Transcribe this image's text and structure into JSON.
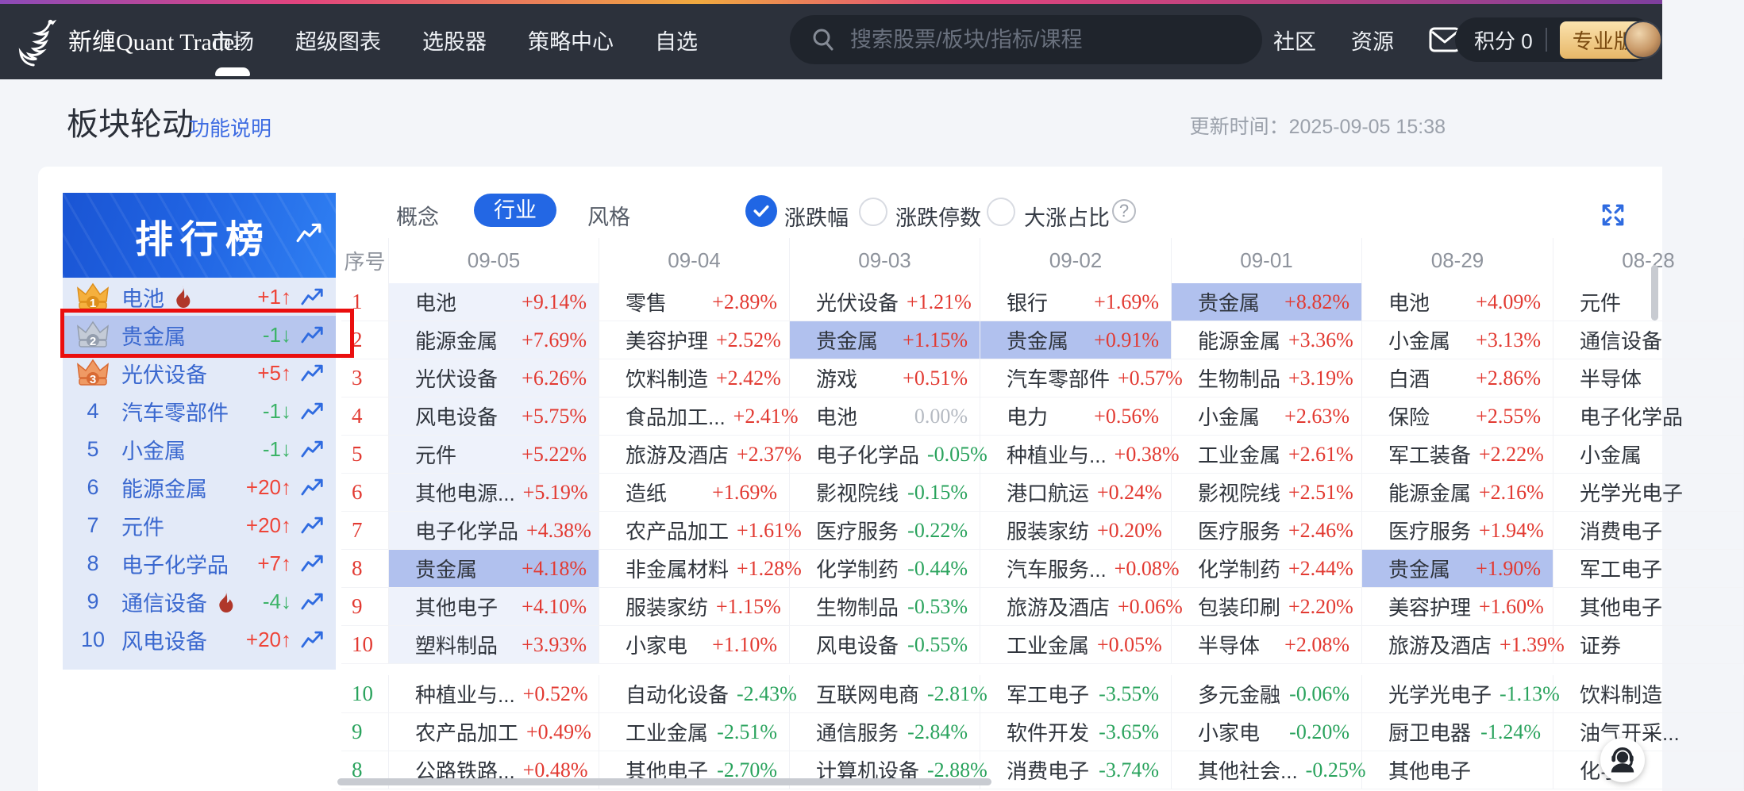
{
  "nav": {
    "brand": "新缠Quant Trader",
    "menu": [
      {
        "label": "市场",
        "active": true
      },
      {
        "label": "超级图表",
        "active": false
      },
      {
        "label": "选股器",
        "active": false
      },
      {
        "label": "策略中心",
        "active": false
      },
      {
        "label": "自选",
        "active": false
      }
    ],
    "search_placeholder": "搜索股票/板块/指标/课程",
    "links": [
      {
        "label": "社区"
      },
      {
        "label": "资源"
      }
    ],
    "score_label": "积分 0",
    "badge": "专业版"
  },
  "header": {
    "title": "板块轮动",
    "doc_link": "功能说明",
    "update_time": "更新时间：2025-09-05 15:38"
  },
  "sidebar": {
    "title": "排行榜",
    "items": [
      {
        "rank": 1,
        "name": "电池",
        "hot": true,
        "delta": "+1",
        "dir": "up",
        "selected": false
      },
      {
        "rank": 2,
        "name": "贵金属",
        "hot": false,
        "delta": "-1",
        "dir": "down",
        "selected": true
      },
      {
        "rank": 3,
        "name": "光伏设备",
        "hot": false,
        "delta": "+5",
        "dir": "up",
        "selected": false
      },
      {
        "rank": 4,
        "name": "汽车零部件",
        "hot": false,
        "delta": "-1",
        "dir": "down",
        "selected": false
      },
      {
        "rank": 5,
        "name": "小金属",
        "hot": false,
        "delta": "-1",
        "dir": "down",
        "selected": false
      },
      {
        "rank": 6,
        "name": "能源金属",
        "hot": false,
        "delta": "+20",
        "dir": "up",
        "selected": false
      },
      {
        "rank": 7,
        "name": "元件",
        "hot": false,
        "delta": "+20",
        "dir": "up",
        "selected": false
      },
      {
        "rank": 8,
        "name": "电子化学品",
        "hot": false,
        "delta": "+7",
        "dir": "up",
        "selected": false
      },
      {
        "rank": 9,
        "name": "通信设备",
        "hot": true,
        "delta": "-4",
        "dir": "down",
        "selected": false
      },
      {
        "rank": 10,
        "name": "风电设备",
        "hot": false,
        "delta": "+20",
        "dir": "up",
        "selected": false
      }
    ],
    "arrow_up": "↑",
    "arrow_down": "↓"
  },
  "toolbar": {
    "tabs": [
      {
        "label": "概念",
        "active": false
      },
      {
        "label": "行业",
        "active": true
      },
      {
        "label": "风格",
        "active": false
      }
    ],
    "radios": [
      {
        "label": "涨跌幅",
        "checked": true
      },
      {
        "label": "涨跌停数",
        "checked": false
      },
      {
        "label": "大涨占比",
        "checked": false
      }
    ],
    "help_glyph": "?"
  },
  "table": {
    "index_header": "序号",
    "dates": [
      "09-05",
      "09-04",
      "09-03",
      "09-02",
      "09-01",
      "08-29",
      "08-28"
    ],
    "gainers": [
      {
        "index": "1",
        "cells": [
          {
            "name": "电池",
            "pct": "+9.14%"
          },
          {
            "name": "零售",
            "pct": "+2.89%"
          },
          {
            "name": "光伏设备",
            "pct": "+1.21%"
          },
          {
            "name": "银行",
            "pct": "+1.69%"
          },
          {
            "name": "贵金属",
            "pct": "+8.82%",
            "hl": true
          },
          {
            "name": "电池",
            "pct": "+4.09%"
          },
          {
            "name": "元件",
            "pct": ""
          }
        ]
      },
      {
        "index": "2",
        "cells": [
          {
            "name": "能源金属",
            "pct": "+7.69%"
          },
          {
            "name": "美容护理",
            "pct": "+2.52%"
          },
          {
            "name": "贵金属",
            "pct": "+1.15%",
            "hl": true
          },
          {
            "name": "贵金属",
            "pct": "+0.91%",
            "hl": true
          },
          {
            "name": "能源金属",
            "pct": "+3.36%"
          },
          {
            "name": "小金属",
            "pct": "+3.13%"
          },
          {
            "name": "通信设备",
            "pct": ""
          }
        ]
      },
      {
        "index": "3",
        "cells": [
          {
            "name": "光伏设备",
            "pct": "+6.26%"
          },
          {
            "name": "饮料制造",
            "pct": "+2.42%"
          },
          {
            "name": "游戏",
            "pct": "+0.51%"
          },
          {
            "name": "汽车零部件",
            "pct": "+0.57%"
          },
          {
            "name": "生物制品",
            "pct": "+3.19%"
          },
          {
            "name": "白酒",
            "pct": "+2.86%"
          },
          {
            "name": "半导体",
            "pct": ""
          }
        ]
      },
      {
        "index": "4",
        "cells": [
          {
            "name": "风电设备",
            "pct": "+5.75%"
          },
          {
            "name": "食品加工...",
            "pct": "+2.41%"
          },
          {
            "name": "电池",
            "pct": "0.00%"
          },
          {
            "name": "电力",
            "pct": "+0.56%"
          },
          {
            "name": "小金属",
            "pct": "+2.63%"
          },
          {
            "name": "保险",
            "pct": "+2.55%"
          },
          {
            "name": "电子化学品",
            "pct": ""
          }
        ]
      },
      {
        "index": "5",
        "cells": [
          {
            "name": "元件",
            "pct": "+5.22%"
          },
          {
            "name": "旅游及酒店",
            "pct": "+2.37%"
          },
          {
            "name": "电子化学品",
            "pct": "-0.05%"
          },
          {
            "name": "种植业与...",
            "pct": "+0.38%"
          },
          {
            "name": "工业金属",
            "pct": "+2.61%"
          },
          {
            "name": "军工装备",
            "pct": "+2.22%"
          },
          {
            "name": "小金属",
            "pct": ""
          }
        ]
      },
      {
        "index": "6",
        "cells": [
          {
            "name": "其他电源...",
            "pct": "+5.19%"
          },
          {
            "name": "造纸",
            "pct": "+1.69%"
          },
          {
            "name": "影视院线",
            "pct": "-0.15%"
          },
          {
            "name": "港口航运",
            "pct": "+0.24%"
          },
          {
            "name": "影视院线",
            "pct": "+2.51%"
          },
          {
            "name": "能源金属",
            "pct": "+2.16%"
          },
          {
            "name": "光学光电子",
            "pct": ""
          }
        ]
      },
      {
        "index": "7",
        "cells": [
          {
            "name": "电子化学品",
            "pct": "+4.38%"
          },
          {
            "name": "农产品加工",
            "pct": "+1.61%"
          },
          {
            "name": "医疗服务",
            "pct": "-0.22%"
          },
          {
            "name": "服装家纺",
            "pct": "+0.20%"
          },
          {
            "name": "医疗服务",
            "pct": "+2.46%"
          },
          {
            "name": "医疗服务",
            "pct": "+1.94%"
          },
          {
            "name": "消费电子",
            "pct": ""
          }
        ]
      },
      {
        "index": "8",
        "cells": [
          {
            "name": "贵金属",
            "pct": "+4.18%",
            "hl": true
          },
          {
            "name": "非金属材料",
            "pct": "+1.28%"
          },
          {
            "name": "化学制药",
            "pct": "-0.44%"
          },
          {
            "name": "汽车服务...",
            "pct": "+0.08%"
          },
          {
            "name": "化学制药",
            "pct": "+2.44%"
          },
          {
            "name": "贵金属",
            "pct": "+1.90%",
            "hl": true
          },
          {
            "name": "军工电子",
            "pct": ""
          }
        ]
      },
      {
        "index": "9",
        "cells": [
          {
            "name": "其他电子",
            "pct": "+4.10%"
          },
          {
            "name": "服装家纺",
            "pct": "+1.15%"
          },
          {
            "name": "生物制品",
            "pct": "-0.53%"
          },
          {
            "name": "旅游及酒店",
            "pct": "+0.06%"
          },
          {
            "name": "包装印刷",
            "pct": "+2.20%"
          },
          {
            "name": "美容护理",
            "pct": "+1.60%"
          },
          {
            "name": "其他电子",
            "pct": ""
          }
        ]
      },
      {
        "index": "10",
        "cells": [
          {
            "name": "塑料制品",
            "pct": "+3.93%"
          },
          {
            "name": "小家电",
            "pct": "+1.10%"
          },
          {
            "name": "风电设备",
            "pct": "-0.55%"
          },
          {
            "name": "工业金属",
            "pct": "+0.05%"
          },
          {
            "name": "半导体",
            "pct": "+2.08%"
          },
          {
            "name": "旅游及酒店",
            "pct": "+1.39%"
          },
          {
            "name": "证券",
            "pct": ""
          }
        ]
      }
    ],
    "losers": [
      {
        "index": "10",
        "cells": [
          {
            "name": "种植业与...",
            "pct": "+0.52%"
          },
          {
            "name": "自动化设备",
            "pct": "-2.43%"
          },
          {
            "name": "互联网电商",
            "pct": "-2.81%"
          },
          {
            "name": "军工电子",
            "pct": "-3.55%"
          },
          {
            "name": "多元金融",
            "pct": "-0.06%"
          },
          {
            "name": "光学光电子",
            "pct": "-1.13%"
          },
          {
            "name": "饮料制造",
            "pct": ""
          }
        ]
      },
      {
        "index": "9",
        "cells": [
          {
            "name": "农产品加工",
            "pct": "+0.49%"
          },
          {
            "name": "工业金属",
            "pct": "-2.51%"
          },
          {
            "name": "通信服务",
            "pct": "-2.84%"
          },
          {
            "name": "软件开发",
            "pct": "-3.65%"
          },
          {
            "name": "小家电",
            "pct": "-0.20%"
          },
          {
            "name": "厨卫电器",
            "pct": "-1.24%"
          },
          {
            "name": "油气开采...",
            "pct": ""
          }
        ]
      },
      {
        "index": "8",
        "cells": [
          {
            "name": "公路铁路...",
            "pct": "+0.48%"
          },
          {
            "name": "其他电子",
            "pct": "-2.70%"
          },
          {
            "name": "计算机设备",
            "pct": "-2.88%"
          },
          {
            "name": "消费电子",
            "pct": "-3.74%"
          },
          {
            "name": "其他社会...",
            "pct": "-0.25%"
          },
          {
            "name": "其他电子",
            "pct": ""
          },
          {
            "name": "化学",
            "pct": ""
          }
        ]
      }
    ]
  },
  "colors": {
    "up_red": "#e23a32",
    "down_green": "#2aa35d",
    "flat_gray": "#b5bac2",
    "accent_blue": "#2367e4",
    "sidebar_link_blue": "#3a68cf",
    "highlight_cell": "#b1c1ee",
    "column_tint": "#eef2fb",
    "sidebar_bg": "#e3eaf8",
    "selected_row": "#b7c6ee",
    "annotation_red": "#ea0e0e",
    "crown_gold": "#f5b03e",
    "crown_silver": "#c4cbd7",
    "crown_bronze": "#ef9a64",
    "fire": "#b0372a"
  }
}
